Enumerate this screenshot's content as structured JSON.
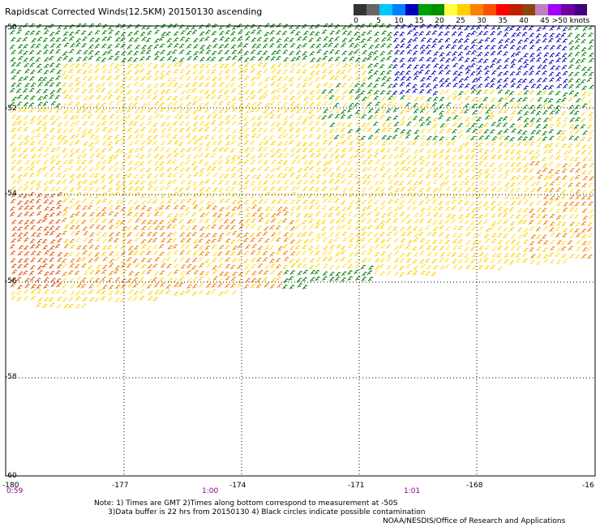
{
  "title": "Rapidscat Corrected Winds(12.5KM) 20150130 ascending",
  "scale": {
    "colors": [
      "#333333",
      "#666666",
      "#00c8ff",
      "#0080ff",
      "#0000c0",
      "#00a000",
      "#009000",
      "#ffff40",
      "#ffd000",
      "#ff8000",
      "#ff5000",
      "#ff0000",
      "#c02000",
      "#8b4513",
      "#c080c0",
      "#a000ff",
      "#7000a0",
      "#400080"
    ],
    "labels": [
      "0",
      "5",
      "10",
      "15",
      "20",
      "25",
      "30",
      "35",
      "40",
      "45",
      ">50 knots"
    ]
  },
  "map": {
    "lon_ticks": [
      "-180",
      "-177",
      "-174",
      "-171",
      "-168",
      "-16"
    ],
    "lat_ticks": [
      "-50",
      "-52",
      "-54",
      "-56",
      "-58",
      "-60"
    ],
    "times": [
      "0:59",
      "1:00",
      "1:01"
    ]
  },
  "notes": "Note: 1) Times are GMT 2)Times along bottom correspond to measurement at -50S\n      3)Data buffer is 22 hrs from 20150130 4) Black circles indicate possible contamination",
  "credit": "NOAA/NESDIS/Office of Research and Applications"
}
